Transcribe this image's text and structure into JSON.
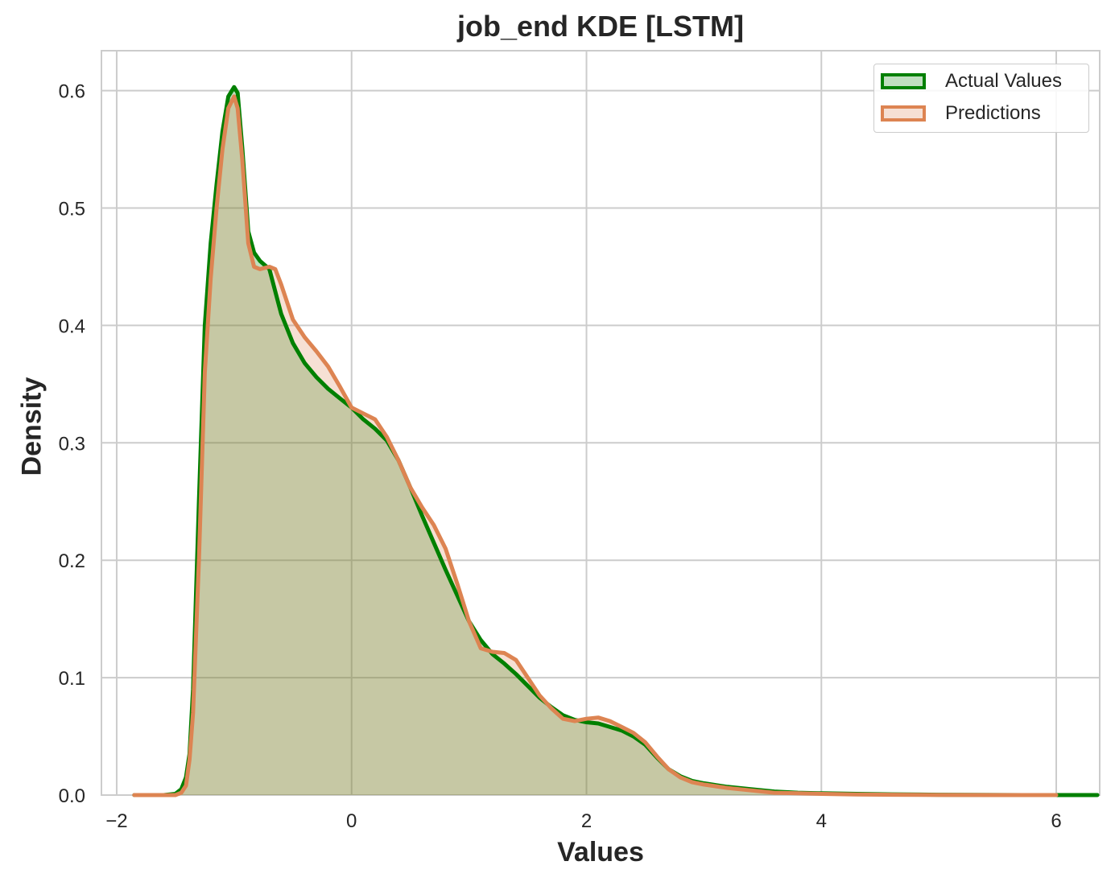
{
  "chart_data": {
    "type": "area",
    "title": "job_end KDE [LSTM]",
    "xlabel": "Values",
    "ylabel": "Density",
    "xlim": [
      -2.13,
      6.37
    ],
    "ylim": [
      0,
      0.634
    ],
    "xticks": [
      -2,
      0,
      2,
      4,
      6
    ],
    "xtick_labels": [
      "−2",
      "0",
      "2",
      "4",
      "6"
    ],
    "yticks": [
      0.0,
      0.1,
      0.2,
      0.3,
      0.4,
      0.5,
      0.6
    ],
    "ytick_labels": [
      "0.0",
      "0.1",
      "0.2",
      "0.3",
      "0.4",
      "0.5",
      "0.6"
    ],
    "grid": true,
    "legend_position": "top-right",
    "series": [
      {
        "name": "Actual Values",
        "color": "#008000",
        "fill_color": "#008000",
        "fill_opacity": 0.25,
        "x": [
          -1.85,
          -1.6,
          -1.5,
          -1.45,
          -1.41,
          -1.38,
          -1.35,
          -1.3,
          -1.25,
          -1.2,
          -1.15,
          -1.1,
          -1.05,
          -1.0,
          -0.97,
          -0.93,
          -0.88,
          -0.83,
          -0.78,
          -0.7,
          -0.6,
          -0.5,
          -0.4,
          -0.3,
          -0.2,
          -0.1,
          0.0,
          0.1,
          0.2,
          0.3,
          0.4,
          0.5,
          0.6,
          0.7,
          0.8,
          0.9,
          1.0,
          1.1,
          1.2,
          1.3,
          1.4,
          1.5,
          1.6,
          1.7,
          1.8,
          1.9,
          2.0,
          2.1,
          2.2,
          2.3,
          2.4,
          2.5,
          2.6,
          2.7,
          2.8,
          2.9,
          3.0,
          3.2,
          3.4,
          3.6,
          3.8,
          4.0,
          4.3,
          4.6,
          5.0,
          5.5,
          6.0,
          6.35
        ],
        "y": [
          0.0,
          0.0,
          0.001,
          0.005,
          0.015,
          0.035,
          0.09,
          0.25,
          0.4,
          0.47,
          0.52,
          0.565,
          0.595,
          0.603,
          0.598,
          0.55,
          0.48,
          0.462,
          0.455,
          0.448,
          0.41,
          0.385,
          0.368,
          0.356,
          0.346,
          0.338,
          0.33,
          0.32,
          0.312,
          0.302,
          0.285,
          0.262,
          0.238,
          0.215,
          0.192,
          0.17,
          0.148,
          0.132,
          0.12,
          0.112,
          0.103,
          0.093,
          0.083,
          0.075,
          0.068,
          0.064,
          0.062,
          0.061,
          0.058,
          0.055,
          0.05,
          0.043,
          0.032,
          0.022,
          0.016,
          0.012,
          0.01,
          0.007,
          0.005,
          0.003,
          0.002,
          0.0015,
          0.001,
          0.0006,
          0.0003,
          0.0001,
          0.0,
          0.0
        ]
      },
      {
        "name": "Predictions",
        "color": "#dd8452",
        "fill_color": "#dd8452",
        "fill_opacity": 0.25,
        "x": [
          -1.85,
          -1.6,
          -1.5,
          -1.45,
          -1.41,
          -1.38,
          -1.35,
          -1.3,
          -1.25,
          -1.2,
          -1.15,
          -1.1,
          -1.05,
          -1.0,
          -0.97,
          -0.93,
          -0.88,
          -0.83,
          -0.78,
          -0.7,
          -0.65,
          -0.6,
          -0.5,
          -0.4,
          -0.3,
          -0.2,
          -0.1,
          0.0,
          0.1,
          0.2,
          0.3,
          0.4,
          0.5,
          0.6,
          0.7,
          0.8,
          0.9,
          1.0,
          1.1,
          1.2,
          1.3,
          1.4,
          1.5,
          1.6,
          1.7,
          1.8,
          1.9,
          2.0,
          2.1,
          2.2,
          2.3,
          2.4,
          2.5,
          2.6,
          2.7,
          2.8,
          2.9,
          3.0,
          3.2,
          3.4,
          3.6,
          3.8,
          4.0,
          4.3,
          4.6,
          5.0,
          5.5,
          6.0
        ],
        "y": [
          0.0,
          0.0,
          0.0,
          0.002,
          0.008,
          0.03,
          0.07,
          0.2,
          0.36,
          0.44,
          0.5,
          0.55,
          0.585,
          0.595,
          0.585,
          0.54,
          0.47,
          0.45,
          0.448,
          0.45,
          0.448,
          0.435,
          0.405,
          0.39,
          0.378,
          0.365,
          0.348,
          0.33,
          0.325,
          0.32,
          0.305,
          0.285,
          0.262,
          0.245,
          0.23,
          0.21,
          0.18,
          0.148,
          0.125,
          0.122,
          0.121,
          0.115,
          0.1,
          0.085,
          0.074,
          0.065,
          0.063,
          0.065,
          0.066,
          0.063,
          0.058,
          0.053,
          0.045,
          0.033,
          0.022,
          0.015,
          0.011,
          0.009,
          0.006,
          0.004,
          0.002,
          0.0015,
          0.001,
          0.0005,
          0.0003,
          0.0001,
          0.0,
          0.0
        ]
      }
    ]
  }
}
